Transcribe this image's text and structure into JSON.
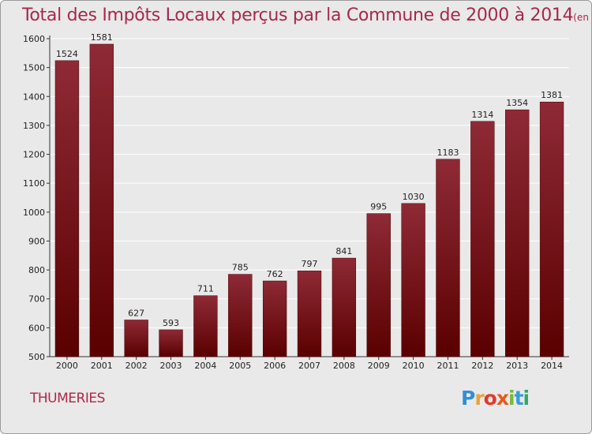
{
  "title": "Total des Impôts Locaux perçus par la Commune de 2000 à 2014",
  "title_unit": "(en milliers d'€)",
  "commune": "THUMERIES",
  "logo": {
    "letters": [
      "P",
      "r",
      "o",
      "x",
      "i",
      "t",
      "i"
    ],
    "colors": [
      "#2f8fd8",
      "#e8a33a",
      "#e23a2a",
      "#e85a1a",
      "#7ab83a",
      "#3a9ad8",
      "#2faa6a"
    ]
  },
  "colors": {
    "title": "#a8284a",
    "bar_top": "#8e2a36",
    "bar_bottom": "#5a0000",
    "background": "#e9e9e9",
    "grid": "#ffffff"
  },
  "chart_data": {
    "type": "bar",
    "categories": [
      "2000",
      "2001",
      "2002",
      "2003",
      "2004",
      "2005",
      "2006",
      "2007",
      "2008",
      "2009",
      "2010",
      "2011",
      "2012",
      "2013",
      "2014"
    ],
    "values": [
      1524,
      1581,
      627,
      593,
      711,
      785,
      762,
      797,
      841,
      995,
      1030,
      1183,
      1314,
      1354,
      1381
    ],
    "ylim": [
      500,
      1600
    ],
    "yticks": [
      500,
      600,
      700,
      800,
      900,
      1000,
      1100,
      1200,
      1300,
      1400,
      1500,
      1600
    ],
    "grid": true,
    "xlabel": "",
    "ylabel": ""
  }
}
